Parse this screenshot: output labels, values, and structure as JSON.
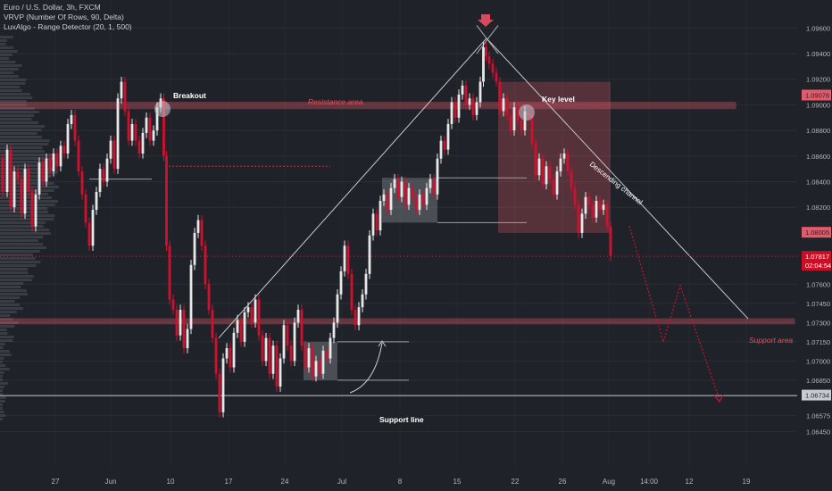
{
  "legend": {
    "symbol_line": "Euro / U.S. Dollar, 3h, FXCM",
    "indicator_1": "VRVP (Number Of Rows, 90, Delta)",
    "indicator_2": "LuxAlgo - Range Detector (20, 1, 500)"
  },
  "colors": {
    "background": "#1f2228",
    "grid": "#2a2e36",
    "candle_up": "#e8e8e8",
    "candle_down": "#d0102e",
    "zone_fill": "#e35a6a",
    "zone_line": "#e35a6a",
    "range_box": "#9aa0a8",
    "annotation": "#ffffff",
    "current_price_label": "#c80f26"
  },
  "annotations": {
    "breakout": "Breakout",
    "resistance_area": "Resistance area",
    "key_level": "Key level",
    "descending_channel": "Descending channel",
    "support_area": "Support area",
    "support_line": "Support line"
  },
  "price_labels": {
    "key_high": "1.09076",
    "range_low": "1.08005",
    "current_price": "1.07817",
    "countdown": "02:04:54",
    "support_low": "1.06734"
  },
  "chart_data": {
    "type": "candlestick",
    "symbol": "Euro / U.S. Dollar",
    "timeframe": "3h",
    "broker": "FXCM",
    "y_ticks": [
      "1.09600",
      "1.09400",
      "1.09200",
      "1.09000",
      "1.08800",
      "1.08600",
      "1.08400",
      "1.08200",
      "1.07600",
      "1.07450",
      "1.07300",
      "1.07150",
      "1.07000",
      "1.06850",
      "1.06575",
      "1.06450"
    ],
    "x_ticks": [
      "27",
      "Jun",
      "10",
      "17",
      "24",
      "Jul",
      "8",
      "15",
      "22",
      "26",
      "Aug",
      "14:00",
      "12",
      "19"
    ],
    "ylim": [
      1.0635,
      1.0975
    ],
    "path": [
      [
        0,
        1.0858
      ],
      [
        6,
        1.0832
      ],
      [
        10,
        1.0865
      ],
      [
        14,
        1.082
      ],
      [
        18,
        1.0848
      ],
      [
        22,
        1.0842
      ],
      [
        26,
        1.0815
      ],
      [
        30,
        1.085
      ],
      [
        34,
        1.0832
      ],
      [
        38,
        1.0805
      ],
      [
        42,
        1.083
      ],
      [
        46,
        1.0855
      ],
      [
        50,
        1.084
      ],
      [
        54,
        1.0858
      ],
      [
        58,
        1.0848
      ],
      [
        62,
        1.0862
      ],
      [
        66,
        1.0852
      ],
      [
        70,
        1.0868
      ],
      [
        74,
        1.0862
      ],
      [
        78,
        1.0885
      ],
      [
        82,
        1.0892
      ],
      [
        86,
        1.0872
      ],
      [
        90,
        1.0848
      ],
      [
        94,
        1.083
      ],
      [
        98,
        1.0808
      ],
      [
        102,
        1.079
      ],
      [
        106,
        1.0818
      ],
      [
        110,
        1.0832
      ],
      [
        114,
        1.085
      ],
      [
        118,
        1.084
      ],
      [
        122,
        1.0858
      ],
      [
        126,
        1.0872
      ],
      [
        130,
        1.085
      ],
      [
        134,
        1.0905
      ],
      [
        138,
        1.0918
      ],
      [
        142,
        1.0895
      ],
      [
        146,
        1.0872
      ],
      [
        150,
        1.0885
      ],
      [
        154,
        1.0872
      ],
      [
        158,
        1.0862
      ],
      [
        162,
        1.0878
      ],
      [
        166,
        1.089
      ],
      [
        170,
        1.0872
      ],
      [
        174,
        1.088
      ],
      [
        178,
        1.0898
      ],
      [
        182,
        1.0905
      ],
      [
        185,
        1.086
      ],
      [
        188,
        1.079
      ],
      [
        192,
        1.0748
      ],
      [
        196,
        1.074
      ],
      [
        200,
        1.072
      ],
      [
        204,
        1.074
      ],
      [
        208,
        1.071
      ],
      [
        212,
        1.0725
      ],
      [
        216,
        1.0775
      ],
      [
        220,
        1.08
      ],
      [
        224,
        1.081
      ],
      [
        228,
        1.079
      ],
      [
        232,
        1.076
      ],
      [
        236,
        1.074
      ],
      [
        240,
        1.0718
      ],
      [
        244,
        1.069
      ],
      [
        248,
        1.066
      ],
      [
        252,
        1.0702
      ],
      [
        256,
        1.071
      ],
      [
        260,
        1.0695
      ],
      [
        264,
        1.0722
      ],
      [
        268,
        1.0732
      ],
      [
        272,
        1.0715
      ],
      [
        276,
        1.0738
      ],
      [
        280,
        1.0742
      ],
      [
        284,
        1.073
      ],
      [
        288,
        1.0748
      ],
      [
        292,
        1.072
      ],
      [
        296,
        1.07
      ],
      [
        300,
        1.0718
      ],
      [
        304,
        1.069
      ],
      [
        308,
        1.0712
      ],
      [
        312,
        1.068
      ],
      [
        316,
        1.0702
      ],
      [
        320,
        1.0728
      ],
      [
        324,
        1.0712
      ],
      [
        328,
        1.07
      ],
      [
        332,
        1.073
      ],
      [
        336,
        1.074
      ],
      [
        340,
        1.0712
      ],
      [
        344,
        1.0695
      ],
      [
        348,
        1.071
      ],
      [
        352,
        1.0688
      ],
      [
        356,
        1.07
      ],
      [
        360,
        1.069
      ],
      [
        364,
        1.0708
      ],
      [
        368,
        1.0702
      ],
      [
        372,
        1.0718
      ],
      [
        376,
        1.073
      ],
      [
        380,
        1.0752
      ],
      [
        384,
        1.077
      ],
      [
        388,
        1.079
      ],
      [
        392,
        1.0768
      ],
      [
        396,
        1.074
      ],
      [
        400,
        1.0728
      ],
      [
        404,
        1.0742
      ],
      [
        408,
        1.0752
      ],
      [
        412,
        1.0768
      ],
      [
        416,
        1.0798
      ],
      [
        420,
        1.0815
      ],
      [
        424,
        1.0802
      ],
      [
        428,
        1.0825
      ],
      [
        432,
        1.083
      ],
      [
        436,
        1.0818
      ],
      [
        440,
        1.0835
      ],
      [
        444,
        1.0842
      ],
      [
        448,
        1.0828
      ],
      [
        452,
        1.084
      ],
      [
        456,
        1.0822
      ],
      [
        460,
        1.0835
      ],
      [
        464,
        1.0828
      ],
      [
        468,
        1.0818
      ],
      [
        472,
        1.083
      ],
      [
        476,
        1.0822
      ],
      [
        480,
        1.0835
      ],
      [
        484,
        1.0842
      ],
      [
        488,
        1.083
      ],
      [
        492,
        1.0858
      ],
      [
        496,
        1.0872
      ],
      [
        500,
        1.0865
      ],
      [
        504,
        1.0885
      ],
      [
        508,
        1.0902
      ],
      [
        512,
        1.089
      ],
      [
        516,
        1.0908
      ],
      [
        520,
        1.0915
      ],
      [
        524,
        1.09
      ],
      [
        528,
        1.0905
      ],
      [
        532,
        1.0892
      ],
      [
        536,
        1.0902
      ],
      [
        540,
        1.0918
      ],
      [
        543,
        1.0945
      ],
      [
        546,
        1.0938
      ],
      [
        550,
        1.0932
      ],
      [
        554,
        1.0925
      ],
      [
        558,
        1.0918
      ],
      [
        562,
        1.0895
      ],
      [
        566,
        1.0905
      ],
      [
        570,
        1.0892
      ],
      [
        574,
        1.088
      ],
      [
        578,
        1.0898
      ],
      [
        582,
        1.0888
      ],
      [
        586,
        1.088
      ],
      [
        590,
        1.0895
      ],
      [
        594,
        1.0892
      ],
      [
        598,
        1.087
      ],
      [
        602,
        1.0845
      ],
      [
        606,
        1.0858
      ],
      [
        610,
        1.0838
      ],
      [
        614,
        1.0852
      ],
      [
        618,
        1.0842
      ],
      [
        622,
        1.083
      ],
      [
        626,
        1.0848
      ],
      [
        630,
        1.0858
      ],
      [
        634,
        1.0862
      ],
      [
        638,
        1.0848
      ],
      [
        642,
        1.0835
      ],
      [
        646,
        1.0822
      ],
      [
        650,
        1.08
      ],
      [
        654,
        1.0815
      ],
      [
        658,
        1.0828
      ],
      [
        662,
        1.0822
      ],
      [
        666,
        1.0812
      ],
      [
        670,
        1.0825
      ],
      [
        674,
        1.0818
      ],
      [
        678,
        1.0822
      ],
      [
        682,
        1.0805
      ],
      [
        686,
        1.0782
      ]
    ],
    "resistance_zone": [
      1.0897,
      1.0902
    ],
    "support_zone": [
      1.0729,
      1.0733
    ],
    "support_line": 1.0673,
    "key_level_box": [
      1.08,
      1.0918
    ],
    "consolidation_box_1": [
      1.0808,
      1.0843
    ],
    "consolidation_box_2": [
      1.0685,
      1.0715
    ],
    "current_price": 1.07817
  }
}
